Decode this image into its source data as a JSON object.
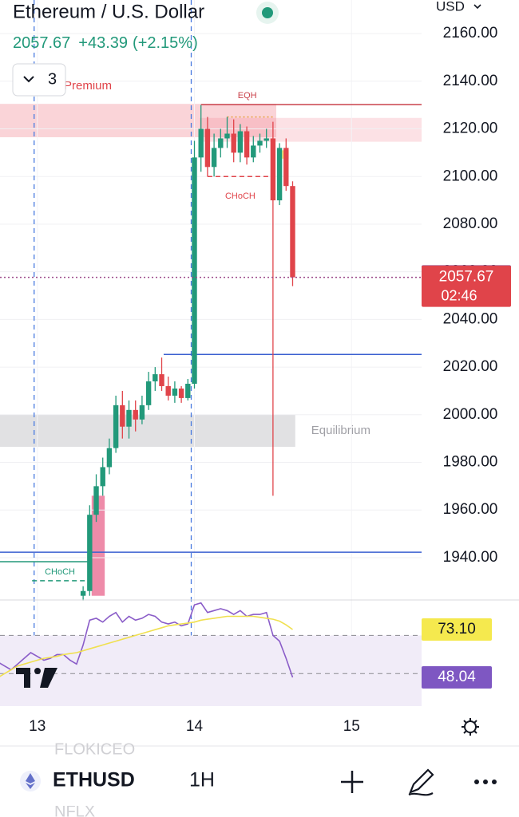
{
  "header": {
    "title": "Ethereum / U.S. Dollar",
    "price": "2057.67",
    "change": "+43.39",
    "change_pct": "(+2.15%)",
    "indicator_count": "3",
    "currency": "USD"
  },
  "chart_data": [
    {
      "type": "candlestick",
      "x": [
        7,
        8,
        9,
        10,
        11,
        12,
        13,
        14,
        15,
        16,
        17,
        18,
        19,
        20,
        21,
        22,
        23,
        24,
        25,
        26,
        27,
        28,
        29,
        30,
        31,
        32,
        33,
        34,
        35,
        36,
        37,
        38,
        39
      ],
      "open": [
        1924,
        1926,
        1958,
        1970,
        1978,
        1986,
        2004,
        1995,
        2002,
        1998,
        2004,
        2014,
        2017,
        2012,
        2008,
        2011,
        2007,
        2013,
        2108,
        2120,
        2104,
        2112,
        2116,
        2118,
        2110,
        2119,
        2108,
        2113,
        2115,
        2116,
        2090,
        2112,
        2096
      ],
      "high": [
        1928,
        1962,
        1975,
        1982,
        1990,
        2008,
        2010,
        2006,
        2006,
        2008,
        2018,
        2020,
        2024,
        2016,
        2014,
        2012,
        2015,
        2115,
        2130,
        2125,
        2118,
        2120,
        2125,
        2124,
        2122,
        2121,
        2117,
        2118,
        2120,
        2123,
        2114,
        2116,
        2098
      ],
      "low": [
        1922,
        1924,
        1955,
        1966,
        1975,
        1984,
        1990,
        1990,
        1993,
        1996,
        2002,
        2010,
        2010,
        2006,
        2005,
        2005,
        2006,
        2011,
        2102,
        2100,
        2100,
        2108,
        2112,
        2106,
        2106,
        2105,
        2106,
        2110,
        2112,
        1966,
        2088,
        2094,
        2054
      ],
      "close": [
        1926,
        1958,
        1970,
        1978,
        1986,
        2004,
        1995,
        2002,
        1998,
        2004,
        2014,
        2017,
        2012,
        2008,
        2011,
        2007,
        2013,
        2108,
        2120,
        2104,
        2112,
        2116,
        2118,
        2110,
        2119,
        2108,
        2113,
        2115,
        2116,
        2090,
        2112,
        2096,
        2057.67
      ],
      "up_color": "#22997a",
      "down_color": "#e0444a",
      "xlim": [
        -5.7,
        58.7
      ],
      "xticks": [
        {
          "value": 0,
          "label": "13"
        },
        {
          "value": 24,
          "label": "14"
        },
        {
          "value": 48,
          "label": "15"
        }
      ],
      "ylim": [
        1922.9,
        2174.1
      ],
      "yticks": [
        {
          "value": 2160,
          "label": "2160.00"
        },
        {
          "value": 2140,
          "label": "2140.00"
        },
        {
          "value": 2120,
          "label": "2120.00"
        },
        {
          "value": 2100,
          "label": "2100.00"
        },
        {
          "value": 2080,
          "label": "2080.00"
        },
        {
          "value": 2060,
          "label": "2060.00"
        },
        {
          "value": 2040,
          "label": "2040.00"
        },
        {
          "value": 2020,
          "label": "2020.00"
        },
        {
          "value": 2000,
          "label": "2000.00"
        },
        {
          "value": 1980,
          "label": "1980.00"
        },
        {
          "value": 1960,
          "label": "1960.00"
        },
        {
          "value": 1940,
          "label": "1940.00"
        }
      ],
      "grid": true,
      "zones": [
        {
          "low": 2116.5,
          "high": 2130.5,
          "from": -5.7,
          "to": 36.5,
          "color": "rgba(240,120,135,0.32)",
          "label": "Premium",
          "label_side": "above",
          "label_color": "#e0444a"
        },
        {
          "low": 2114.6,
          "high": 2124.6,
          "from": 24.8,
          "to": 58.7,
          "color": "rgba(240,120,135,0.22)"
        },
        {
          "low": 1986.5,
          "high": 2000,
          "from": -5.7,
          "to": 39.4,
          "color": "rgba(170,170,175,0.35)",
          "label": "Equilibrium",
          "label_side": "right",
          "label_color": "#a0a0a6"
        },
        {
          "low": 1924,
          "high": 1966,
          "from": 8.3,
          "to": 10.3,
          "color": "rgba(232,100,140,0.75)"
        },
        {
          "low": 2107.5,
          "high": 2111,
          "from": 36.7,
          "to": 38.4,
          "color": "rgba(250,230,90,0.8)"
        }
      ],
      "levels": [
        {
          "price": 2130.2,
          "from": 25,
          "to": 58.7,
          "color": "#c9404a",
          "style": "solid",
          "label": "EQH",
          "label_side": "above"
        },
        {
          "price": 2125,
          "from": 29,
          "to": 36,
          "color": "#e8a040",
          "style": "dotted"
        },
        {
          "price": 2100,
          "from": 26,
          "to": 36,
          "color": "#e0444a",
          "style": "dashed",
          "label": "CHoCH",
          "label_side": "below"
        },
        {
          "price": 2025.3,
          "from": 19.3,
          "to": 58.7,
          "color": "#3a5fd0",
          "style": "solid"
        },
        {
          "price": 1942.3,
          "from": -5.7,
          "to": 58.7,
          "color": "#3a5fd0",
          "style": "solid"
        },
        {
          "price": 1938.3,
          "from": -5.7,
          "to": 7.7,
          "color": "#22997a",
          "style": "solid"
        },
        {
          "price": 1930.3,
          "from": -0.8,
          "to": 7.7,
          "color": "#22997a",
          "style": "dashed",
          "label": "CHoCH",
          "label_side": "above"
        }
      ],
      "price_labels": [
        {
          "value": 2057.75,
          "color": "#3a6ee8"
        },
        {
          "value": 2057.67,
          "color": "#e0444a",
          "countdown": "02:46",
          "line": "#9c4a8a"
        }
      ]
    },
    {
      "type": "line",
      "x": [
        -6,
        -5,
        -4,
        -3,
        -2,
        -1,
        0,
        1,
        2,
        3,
        4,
        5,
        6,
        7,
        8,
        9,
        10,
        11,
        12,
        13,
        14,
        15,
        16,
        17,
        18,
        19,
        20,
        21,
        22,
        23,
        24,
        25,
        26,
        27,
        28,
        29,
        30,
        31,
        32,
        33,
        34,
        35,
        36,
        37,
        38,
        39
      ],
      "xlim": [
        -5.7,
        58.7
      ],
      "ylim": [
        33,
        88.55
      ],
      "band": [
        30,
        70
      ],
      "band_color": "#f1ecf8",
      "levels": [
        70,
        50
      ],
      "series": [
        {
          "color": "#8a5cc8",
          "values": [
            56,
            54,
            52,
            55,
            58,
            61,
            59,
            57,
            58,
            60,
            60,
            57,
            55,
            65,
            78,
            79,
            77,
            80,
            82,
            77,
            80,
            78,
            79,
            81,
            80,
            77,
            76,
            77,
            75,
            76,
            86,
            87,
            82,
            83,
            84,
            83,
            81,
            83,
            80,
            81,
            81,
            82,
            70,
            67,
            58,
            48.04
          ]
        },
        {
          "color": "#f0e050",
          "values": [
            48,
            50,
            52,
            54,
            55,
            56,
            57,
            58,
            58.5,
            59,
            60,
            60.5,
            61,
            62,
            63,
            64,
            65,
            66,
            67,
            68,
            69,
            70,
            71,
            72,
            73,
            74,
            75,
            75.5,
            76,
            76.5,
            77,
            78,
            78.5,
            79,
            79.5,
            80,
            80,
            80,
            80,
            80,
            79.5,
            79,
            78.5,
            77.5,
            75.5,
            73.1
          ]
        }
      ],
      "value_labels": [
        {
          "value": 73.1,
          "label": "73.10",
          "color": "#f5e94e",
          "text_color": "#131722"
        },
        {
          "value": 48.04,
          "color": "#7e57c2",
          "text_color": "#ffffff"
        }
      ]
    }
  ],
  "toolbar": {
    "symbol": "ETHUSD",
    "interval": "1H",
    "background_symbols": [
      "FLOKICEO",
      "NFLX"
    ]
  }
}
